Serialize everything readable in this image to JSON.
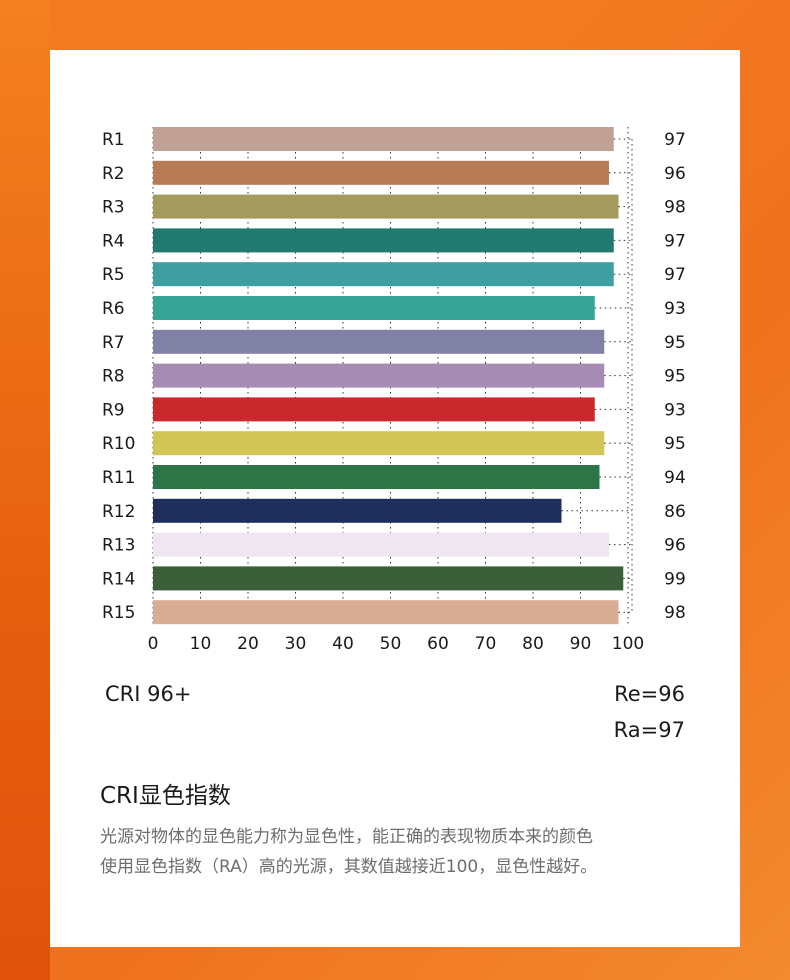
{
  "chart_data": {
    "type": "bar",
    "orientation": "horizontal",
    "categories": [
      "R1",
      "R2",
      "R3",
      "R4",
      "R5",
      "R6",
      "R7",
      "R8",
      "R9",
      "R10",
      "R11",
      "R12",
      "R13",
      "R14",
      "R15"
    ],
    "values": [
      97,
      96,
      98,
      97,
      97,
      93,
      95,
      95,
      93,
      95,
      94,
      86,
      96,
      99,
      98
    ],
    "bar_colors": [
      "#c1a194",
      "#b77b56",
      "#a29b5d",
      "#21796f",
      "#3f9ea0",
      "#36a596",
      "#8181a6",
      "#a68cb5",
      "#c9292d",
      "#d1c655",
      "#2d7446",
      "#202e5c",
      "#f0e6f0",
      "#3a5f39",
      "#d9ad94"
    ],
    "xlim": [
      0,
      100
    ],
    "x_ticks": [
      0,
      10,
      20,
      30,
      40,
      50,
      60,
      70,
      80,
      90,
      100
    ],
    "grid": true,
    "title": "",
    "xlabel": "",
    "ylabel": ""
  },
  "summary": {
    "cri_label": "CRI 96+",
    "re_label": "Re=96",
    "ra_label": "Ra=97"
  },
  "section": {
    "title": "CRI显色指数",
    "description_line1": "光源对物体的显色能力称为显色性，能正确的表现物质本来的颜色",
    "description_line2": "使用显色指数（RA）高的光源，其数值越接近100，显色性越好。"
  }
}
